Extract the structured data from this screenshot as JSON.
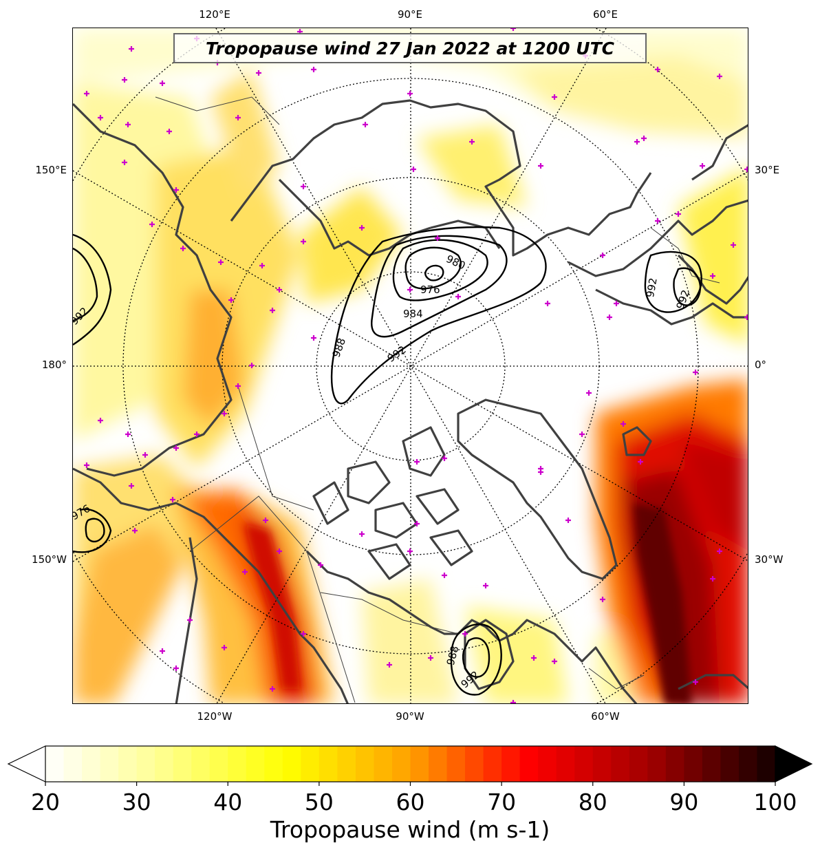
{
  "title": "Tropopause wind 27 Jan 2022 at 1200 UTC",
  "map": {
    "projection": "north-polar-stereographic",
    "top_ticks": [
      "120°E",
      "90°E",
      "60°E"
    ],
    "bottom_ticks": [
      "120°W",
      "90°W",
      "60°W"
    ],
    "left_ticks": [
      "150°E",
      "180°",
      "150°W"
    ],
    "right_ticks": [
      "30°E",
      "0°",
      "30°W"
    ],
    "graticule_style": "dotted",
    "coastline_color": "#404040",
    "marker_color": "#cc00cc",
    "contour_labels": [
      "992",
      "980",
      "976",
      "984",
      "988",
      "992",
      "976",
      "988",
      "992",
      "992",
      "992",
      "988"
    ]
  },
  "colorbar": {
    "label": "Tropopause wind (m s-1)",
    "min": 20,
    "max": 100,
    "ticks": [
      "20",
      "30",
      "40",
      "50",
      "60",
      "70",
      "80",
      "90",
      "100"
    ],
    "extend": "both",
    "colormap": "hot_r"
  }
}
